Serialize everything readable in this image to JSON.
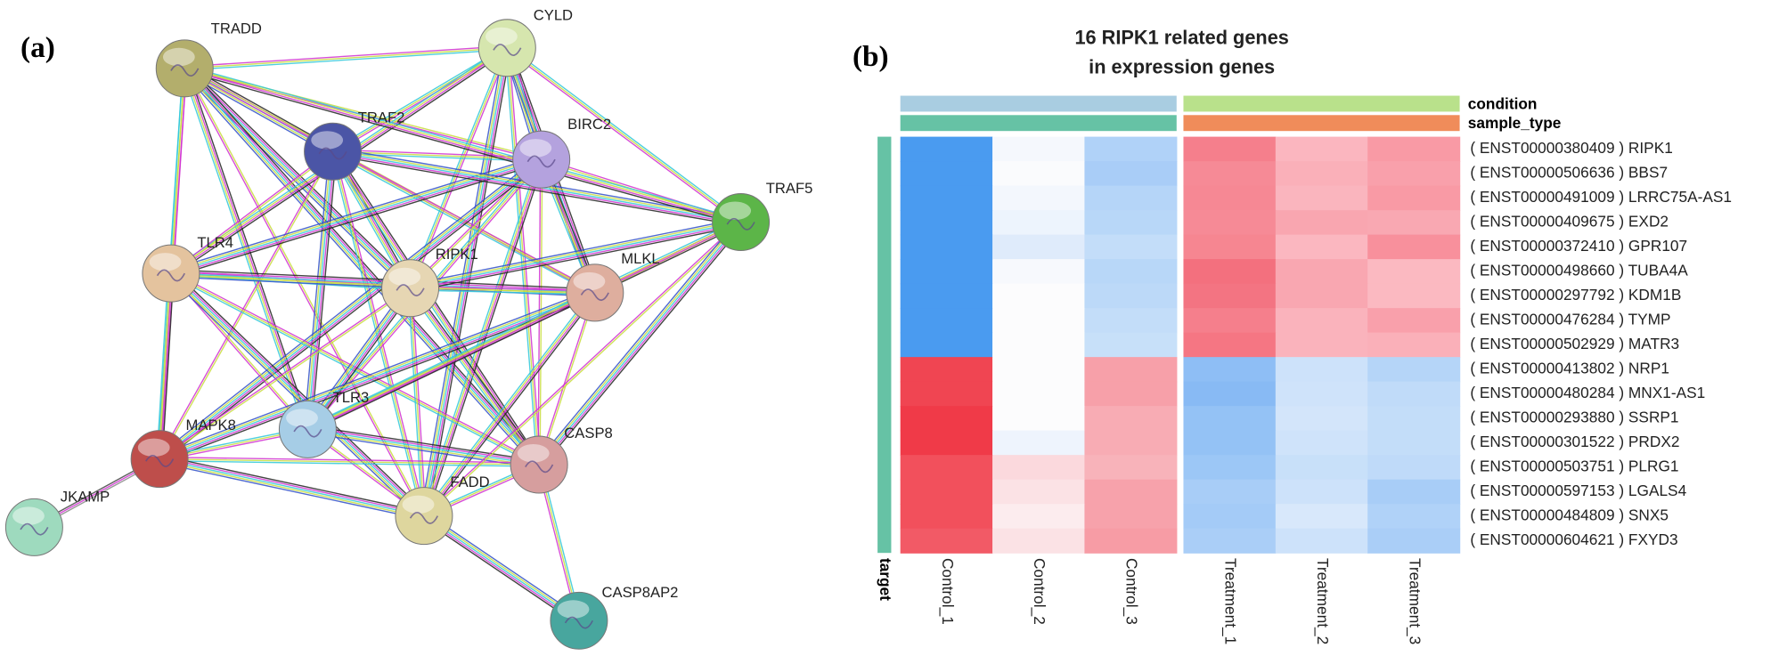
{
  "panel_a": {
    "label": "(a)",
    "nodes": [
      {
        "label": "TRADD",
        "color": "#b3ae6c"
      },
      {
        "label": "CYLD",
        "color": "#d6e6ae"
      },
      {
        "label": "TRAF2",
        "color": "#4b55a6"
      },
      {
        "label": "BIRC2",
        "color": "#b4a2de"
      },
      {
        "label": "TRAF5",
        "color": "#5cb548"
      },
      {
        "label": "TLR4",
        "color": "#e4c39e"
      },
      {
        "label": "RIPK1",
        "color": "#e6d6b3"
      },
      {
        "label": "MLKL",
        "color": "#deae9e"
      },
      {
        "label": "TLR3",
        "color": "#a6cde6"
      },
      {
        "label": "MAPK8",
        "color": "#be4e4b"
      },
      {
        "label": "CASP8",
        "color": "#d69e9e"
      },
      {
        "label": "FADD",
        "color": "#ded69e"
      },
      {
        "label": "JKAMP",
        "color": "#9edabe"
      },
      {
        "label": "CASP8AP2",
        "color": "#48a69e"
      }
    ]
  },
  "panel_b": {
    "label": "(b)",
    "title": [
      "16 RIPK1 related genes",
      "in expression genes"
    ],
    "annotations": [
      {
        "name": "condition",
        "colors": [
          "#a9cde1",
          "#b9e18b"
        ]
      },
      {
        "name": "sample_type",
        "colors": [
          "#66c2a5",
          "#f08c5a"
        ]
      }
    ],
    "row_annotation": {
      "name": "target",
      "color": "#66c2a5"
    },
    "columns": [
      "Control_1",
      "Control_2",
      "Control_3",
      "Treatment_1",
      "Treatment_2",
      "Treatment_3"
    ],
    "rows": [
      {
        "label": "( ENST00000380409 ) RIPK1",
        "colors": [
          "#4a9bf0",
          "#f5f8fd",
          "#b0d2f8",
          "#f57f8c",
          "#fbb6bf",
          "#f99aa5"
        ]
      },
      {
        "label": "( ENST00000506636 ) BBS7",
        "colors": [
          "#4a9bf0",
          "#fafbfd",
          "#a9cdf7",
          "#f68a96",
          "#fab0b9",
          "#f9a0ab"
        ]
      },
      {
        "label": "( ENST00000491009 ) LRRC75A-AS1",
        "colors": [
          "#4a9bf0",
          "#f3f7fd",
          "#b5d5f8",
          "#f68894",
          "#fab5be",
          "#f99aa5"
        ]
      },
      {
        "label": "( ENST00000409675 ) EXD2",
        "colors": [
          "#4a9bf0",
          "#edf4fd",
          "#b8d7f8",
          "#f68a96",
          "#f9a6b0",
          "#f9a8b2"
        ]
      },
      {
        "label": "( ENST00000372410 ) GPR107",
        "colors": [
          "#4a9bf0",
          "#dfebfb",
          "#c3ddf9",
          "#f68691",
          "#fbb7c0",
          "#f8909c"
        ]
      },
      {
        "label": "( ENST00000498660 ) TUBA4A",
        "colors": [
          "#4a9bf0",
          "#f7f9fd",
          "#b8d7f8",
          "#f3707e",
          "#f9a7b1",
          "#fbb9c1"
        ]
      },
      {
        "label": "( ENST00000297792 ) KDM1B",
        "colors": [
          "#4a9bf0",
          "#fcfcfd",
          "#bcd9f8",
          "#f37482",
          "#f9a7b1",
          "#fbb9c1"
        ]
      },
      {
        "label": "( ENST00000476284 ) TYMP",
        "colors": [
          "#4a9bf0",
          "#fcfcfd",
          "#c3ddf9",
          "#f57f8c",
          "#fab3bc",
          "#f9a0ab"
        ]
      },
      {
        "label": "( ENST00000502929 ) MATR3",
        "colors": [
          "#4a9bf0",
          "#fcfcfd",
          "#c7e0f9",
          "#f57683",
          "#fab3bc",
          "#fab0b9"
        ]
      },
      {
        "label": "( ENST00000413802 ) NRP1",
        "colors": [
          "#f04552",
          "#fcfcfd",
          "#f7a0a9",
          "#8ebef5",
          "#cde2fa",
          "#b5d5f8"
        ]
      },
      {
        "label": "( ENST00000480284 ) MNX1-AS1",
        "colors": [
          "#f04552",
          "#fcfcfd",
          "#f7a0a9",
          "#88baf4",
          "#cfe3fa",
          "#c0dbf9"
        ]
      },
      {
        "label": "( ENST00000293880 ) SSRP1",
        "colors": [
          "#f03a48",
          "#fcfcfd",
          "#f8acb4",
          "#94c2f5",
          "#d3e5fa",
          "#c3ddf9"
        ]
      },
      {
        "label": "( ENST00000301522 ) PRDX2",
        "colors": [
          "#f03a48",
          "#eef4fd",
          "#f8acb4",
          "#94c2f5",
          "#cfe3fa",
          "#c3ddf9"
        ]
      },
      {
        "label": "( ENST00000503751 ) PLRG1",
        "colors": [
          "#f2505c",
          "#fbd9dd",
          "#f8b3ba",
          "#9cc7f6",
          "#c8e0f9",
          "#bfdaf9"
        ]
      },
      {
        "label": "( ENST00000597153 ) LGALS4",
        "colors": [
          "#f2505c",
          "#fbe2e5",
          "#f7a2ab",
          "#a8cdf7",
          "#cde2fa",
          "#a8cdf7"
        ]
      },
      {
        "label": "( ENST00000484809 ) SNX5",
        "colors": [
          "#f2505c",
          "#fcecee",
          "#f7a2ab",
          "#a4cbf7",
          "#d8e8fb",
          "#b0d2f8"
        ]
      },
      {
        "label": "( ENST00000604621 ) FXYD3",
        "colors": [
          "#f25a66",
          "#fbe2e5",
          "#f79ca5",
          "#aacef7",
          "#cde2fa",
          "#aacef7"
        ]
      }
    ]
  }
}
